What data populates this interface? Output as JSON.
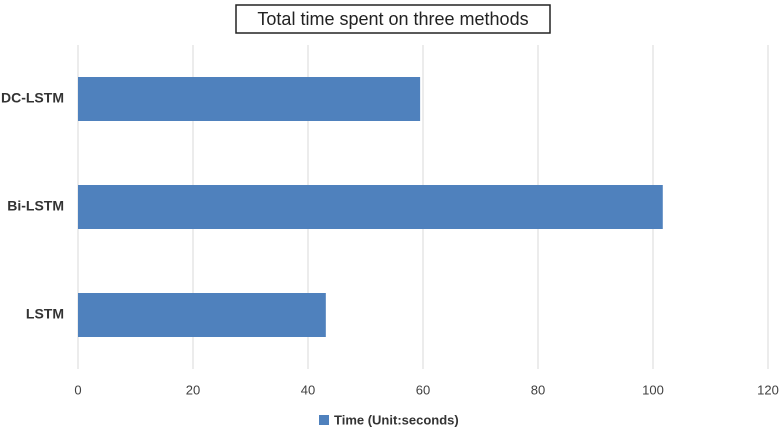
{
  "chart_data": {
    "type": "bar",
    "orientation": "horizontal",
    "title": "Total time spent on three methods",
    "categories": [
      "LSTM",
      "Bi-LSTM",
      "DC-LSTM"
    ],
    "series": [
      {
        "name": "Time (Unit:seconds)",
        "color": "#4f81bd",
        "values": [
          43.1,
          101.7,
          59.5
        ]
      }
    ],
    "xlim": [
      0,
      120
    ],
    "xticks": [
      0,
      20,
      40,
      60,
      80,
      100,
      120
    ],
    "grid": true,
    "legend": "bottom"
  }
}
